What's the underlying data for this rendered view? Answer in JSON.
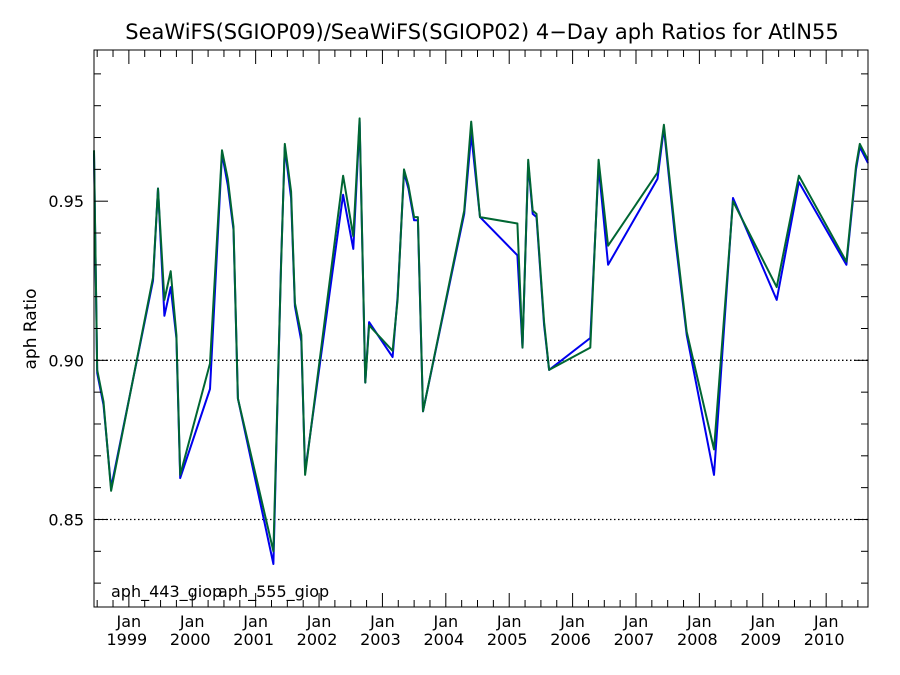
{
  "chart_data": {
    "type": "line",
    "title": "SeaWiFS(SGIOP09)/SeaWiFS(SGIOP02) 4−Day aph Ratios for AtlN55",
    "xlabel": "",
    "ylabel": "aph Ratio",
    "xlim": [
      1998.45,
      2010.66
    ],
    "ylim": [
      0.8225,
      0.9975
    ],
    "yticks": [
      0.85,
      0.9,
      0.95
    ],
    "ytick_labels": [
      "0.85",
      "0.90",
      "0.95"
    ],
    "xticks": [
      {
        "x": 1999.0,
        "month": "Jan",
        "year": "1999"
      },
      {
        "x": 2000.0,
        "month": "Jan",
        "year": "2000"
      },
      {
        "x": 2001.0,
        "month": "Jan",
        "year": "2001"
      },
      {
        "x": 2002.0,
        "month": "Jan",
        "year": "2002"
      },
      {
        "x": 2003.0,
        "month": "Jan",
        "year": "2003"
      },
      {
        "x": 2004.0,
        "month": "Jan",
        "year": "2004"
      },
      {
        "x": 2005.0,
        "month": "Jan",
        "year": "2005"
      },
      {
        "x": 2006.0,
        "month": "Jan",
        "year": "2006"
      },
      {
        "x": 2007.0,
        "month": "Jan",
        "year": "2007"
      },
      {
        "x": 2008.0,
        "month": "Jan",
        "year": "2008"
      },
      {
        "x": 2009.0,
        "month": "Jan",
        "year": "2009"
      },
      {
        "x": 2010.0,
        "month": "Jan",
        "year": "2010"
      }
    ],
    "reference_lines": [
      0.85,
      0.9
    ],
    "grid": false,
    "legend_position": "bottom-left",
    "series": [
      {
        "name": "aph_443_giop",
        "color": "#0000ee",
        "points": [
          [
            1998.45,
            0.965
          ],
          [
            1998.5,
            0.896
          ],
          [
            1998.6,
            0.886
          ],
          [
            1998.72,
            0.86
          ],
          [
            1999.38,
            0.925
          ],
          [
            1999.46,
            0.954
          ],
          [
            1999.56,
            0.914
          ],
          [
            1999.66,
            0.923
          ],
          [
            1999.75,
            0.907
          ],
          [
            1999.81,
            0.863
          ],
          [
            2000.28,
            0.891
          ],
          [
            2000.47,
            0.965
          ],
          [
            2000.56,
            0.955
          ],
          [
            2000.65,
            0.941
          ],
          [
            2000.72,
            0.888
          ],
          [
            2001.28,
            0.836
          ],
          [
            2001.4,
            0.93
          ],
          [
            2001.46,
            0.967
          ],
          [
            2001.56,
            0.951
          ],
          [
            2001.62,
            0.917
          ],
          [
            2001.72,
            0.906
          ],
          [
            2001.78,
            0.865
          ],
          [
            2002.38,
            0.952
          ],
          [
            2002.54,
            0.935
          ],
          [
            2002.64,
            0.975
          ],
          [
            2002.73,
            0.893
          ],
          [
            2002.79,
            0.912
          ],
          [
            2003.16,
            0.901
          ],
          [
            2003.24,
            0.92
          ],
          [
            2003.34,
            0.959
          ],
          [
            2003.41,
            0.954
          ],
          [
            2003.5,
            0.944
          ],
          [
            2003.56,
            0.944
          ],
          [
            2003.64,
            0.884
          ],
          [
            2004.29,
            0.946
          ],
          [
            2004.4,
            0.971
          ],
          [
            2004.54,
            0.945
          ],
          [
            2005.13,
            0.933
          ],
          [
            2005.21,
            0.904
          ],
          [
            2005.3,
            0.962
          ],
          [
            2005.37,
            0.946
          ],
          [
            2005.43,
            0.945
          ],
          [
            2005.55,
            0.911
          ],
          [
            2005.63,
            0.897
          ],
          [
            2006.28,
            0.907
          ],
          [
            2006.41,
            0.961
          ],
          [
            2006.56,
            0.93
          ],
          [
            2007.34,
            0.957
          ],
          [
            2007.44,
            0.973
          ],
          [
            2007.62,
            0.938
          ],
          [
            2007.8,
            0.908
          ],
          [
            2008.23,
            0.864
          ],
          [
            2008.53,
            0.951
          ],
          [
            2009.22,
            0.919
          ],
          [
            2009.57,
            0.956
          ],
          [
            2010.32,
            0.93
          ],
          [
            2010.47,
            0.96
          ],
          [
            2010.53,
            0.967
          ],
          [
            2010.66,
            0.962
          ]
        ]
      },
      {
        "name": "aph_555_giop",
        "color": "#006633",
        "points": [
          [
            1998.45,
            0.966
          ],
          [
            1998.5,
            0.897
          ],
          [
            1998.6,
            0.887
          ],
          [
            1998.72,
            0.859
          ],
          [
            1999.38,
            0.926
          ],
          [
            1999.46,
            0.954
          ],
          [
            1999.56,
            0.919
          ],
          [
            1999.66,
            0.928
          ],
          [
            1999.75,
            0.908
          ],
          [
            1999.81,
            0.864
          ],
          [
            2000.28,
            0.899
          ],
          [
            2000.47,
            0.966
          ],
          [
            2000.56,
            0.957
          ],
          [
            2000.65,
            0.942
          ],
          [
            2000.72,
            0.888
          ],
          [
            2001.28,
            0.84
          ],
          [
            2001.4,
            0.929
          ],
          [
            2001.46,
            0.968
          ],
          [
            2001.56,
            0.953
          ],
          [
            2001.62,
            0.918
          ],
          [
            2001.72,
            0.908
          ],
          [
            2001.78,
            0.864
          ],
          [
            2002.38,
            0.958
          ],
          [
            2002.54,
            0.939
          ],
          [
            2002.64,
            0.976
          ],
          [
            2002.73,
            0.893
          ],
          [
            2002.79,
            0.911
          ],
          [
            2003.16,
            0.903
          ],
          [
            2003.24,
            0.919
          ],
          [
            2003.34,
            0.96
          ],
          [
            2003.41,
            0.955
          ],
          [
            2003.5,
            0.945
          ],
          [
            2003.56,
            0.945
          ],
          [
            2003.64,
            0.884
          ],
          [
            2004.29,
            0.947
          ],
          [
            2004.4,
            0.975
          ],
          [
            2004.54,
            0.945
          ],
          [
            2005.13,
            0.943
          ],
          [
            2005.21,
            0.904
          ],
          [
            2005.3,
            0.963
          ],
          [
            2005.37,
            0.947
          ],
          [
            2005.43,
            0.946
          ],
          [
            2005.55,
            0.912
          ],
          [
            2005.63,
            0.897
          ],
          [
            2006.28,
            0.904
          ],
          [
            2006.41,
            0.963
          ],
          [
            2006.56,
            0.936
          ],
          [
            2007.34,
            0.959
          ],
          [
            2007.44,
            0.974
          ],
          [
            2007.62,
            0.94
          ],
          [
            2007.8,
            0.909
          ],
          [
            2008.23,
            0.872
          ],
          [
            2008.53,
            0.95
          ],
          [
            2009.22,
            0.923
          ],
          [
            2009.57,
            0.958
          ],
          [
            2010.32,
            0.931
          ],
          [
            2010.47,
            0.961
          ],
          [
            2010.53,
            0.968
          ],
          [
            2010.66,
            0.963
          ]
        ]
      }
    ]
  }
}
